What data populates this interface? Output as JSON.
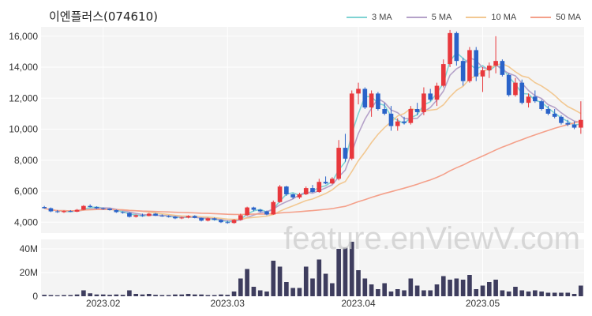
{
  "chart_data": {
    "type": "candlestick",
    "title": "이엔플러스(074610)",
    "watermark": "feature.enViewV.com",
    "legend": [
      {
        "name": "3 MA",
        "color": "#7fd3d3"
      },
      {
        "name": "5 MA",
        "color": "#b5a2c9"
      },
      {
        "name": "10 MA",
        "color": "#f2c892"
      },
      {
        "name": "50 MA",
        "color": "#f4a08a"
      }
    ],
    "colors": {
      "up": "#e8383d",
      "down": "#2a63c9",
      "volume": "#3e3d5e",
      "grid": "#e8e8e8",
      "plot_bg": "#f4f4f4"
    },
    "price_axis": {
      "ticks": [
        "4,000",
        "6,000",
        "8,000",
        "10,000",
        "12,000",
        "14,000",
        "16,000"
      ],
      "range": [
        3300,
        16600
      ]
    },
    "volume_axis": {
      "ticks": [
        "0",
        "20M",
        "40M"
      ],
      "range": [
        0,
        48
      ]
    },
    "x_labels": [
      {
        "label": "2023.02",
        "index": 9
      },
      {
        "label": "2023.03",
        "index": 28
      },
      {
        "label": "2023.04",
        "index": 48
      },
      {
        "label": "2023.05",
        "index": 67
      }
    ],
    "candles": [
      [
        4980,
        5050,
        4870,
        4900
      ],
      [
        4900,
        4950,
        4650,
        4700
      ],
      [
        4700,
        4780,
        4600,
        4650
      ],
      [
        4650,
        4760,
        4600,
        4720
      ],
      [
        4720,
        4780,
        4650,
        4680
      ],
      [
        4680,
        4850,
        4650,
        4800
      ],
      [
        4800,
        5100,
        4780,
        5050
      ],
      [
        5050,
        5150,
        4950,
        4980
      ],
      [
        4980,
        5020,
        4850,
        4900
      ],
      [
        4900,
        4950,
        4800,
        4870
      ],
      [
        4870,
        4900,
        4750,
        4780
      ],
      [
        4780,
        4820,
        4600,
        4650
      ],
      [
        4650,
        4700,
        4550,
        4600
      ],
      [
        4600,
        4650,
        4300,
        4350
      ],
      [
        4350,
        4500,
        4300,
        4450
      ],
      [
        4450,
        4550,
        4350,
        4400
      ],
      [
        4400,
        4600,
        4380,
        4550
      ],
      [
        4550,
        4600,
        4400,
        4420
      ],
      [
        4420,
        4500,
        4350,
        4380
      ],
      [
        4380,
        4450,
        4300,
        4350
      ],
      [
        4350,
        4400,
        4200,
        4250
      ],
      [
        4250,
        4350,
        4200,
        4300
      ],
      [
        4300,
        4450,
        4250,
        4400
      ],
      [
        4400,
        4450,
        4250,
        4280
      ],
      [
        4280,
        4300,
        4050,
        4100
      ],
      [
        4100,
        4300,
        4050,
        4250
      ],
      [
        4250,
        4300,
        4100,
        4150
      ],
      [
        4150,
        4200,
        3950,
        4000
      ],
      [
        4000,
        4100,
        3900,
        3950
      ],
      [
        3950,
        4200,
        3900,
        4150
      ],
      [
        4150,
        4550,
        4100,
        4450
      ],
      [
        4450,
        5000,
        4400,
        4950
      ],
      [
        4950,
        5000,
        4700,
        4800
      ],
      [
        4800,
        4850,
        4650,
        4700
      ],
      [
        4700,
        4750,
        4450,
        4500
      ],
      [
        4500,
        5400,
        4480,
        5300
      ],
      [
        5300,
        6400,
        5250,
        6300
      ],
      [
        6300,
        6350,
        5700,
        5800
      ],
      [
        5800,
        5850,
        5500,
        5600
      ],
      [
        5600,
        5900,
        5500,
        5800
      ],
      [
        5800,
        6300,
        5750,
        6200
      ],
      [
        6200,
        6400,
        5900,
        5950
      ],
      [
        5950,
        6800,
        5900,
        6600
      ],
      [
        6600,
        6950,
        6450,
        6500
      ],
      [
        6500,
        6900,
        6450,
        6800
      ],
      [
        6800,
        9300,
        6700,
        8800
      ],
      [
        8800,
        9700,
        7900,
        8100
      ],
      [
        8100,
        12500,
        8000,
        12300
      ],
      [
        12300,
        13000,
        11600,
        12600
      ],
      [
        12600,
        12700,
        11300,
        11400
      ],
      [
        11400,
        12500,
        10800,
        12300
      ],
      [
        12300,
        12400,
        11200,
        11300
      ],
      [
        11300,
        11700,
        10900,
        11000
      ],
      [
        11000,
        11500,
        9900,
        10200
      ],
      [
        10200,
        10700,
        9900,
        10500
      ],
      [
        10500,
        10800,
        10300,
        10400
      ],
      [
        10400,
        11500,
        10300,
        11300
      ],
      [
        11300,
        11700,
        10900,
        11100
      ],
      [
        11100,
        12700,
        10900,
        12300
      ],
      [
        12300,
        12600,
        11800,
        11900
      ],
      [
        11900,
        13000,
        11500,
        12800
      ],
      [
        12800,
        14500,
        12700,
        14200
      ],
      [
        14200,
        16400,
        14000,
        16200
      ],
      [
        16200,
        16300,
        14100,
        14400
      ],
      [
        14400,
        14600,
        12800,
        13100
      ],
      [
        13100,
        15300,
        13000,
        15100
      ],
      [
        15100,
        15300,
        13100,
        13400
      ],
      [
        13400,
        14000,
        12400,
        13800
      ],
      [
        13800,
        14300,
        13300,
        14100
      ],
      [
        14100,
        16000,
        13600,
        14400
      ],
      [
        14400,
        14500,
        13400,
        13500
      ],
      [
        13500,
        13600,
        12100,
        12200
      ],
      [
        12200,
        13300,
        12100,
        13000
      ],
      [
        13000,
        13200,
        11600,
        11700
      ],
      [
        11700,
        12300,
        11400,
        12100
      ],
      [
        12100,
        12500,
        11700,
        11800
      ],
      [
        11800,
        11900,
        11200,
        11300
      ],
      [
        11300,
        11500,
        10900,
        11000
      ],
      [
        11000,
        11300,
        10700,
        10800
      ],
      [
        10800,
        10900,
        10300,
        10400
      ],
      [
        10400,
        10600,
        10200,
        10300
      ],
      [
        10300,
        10500,
        10000,
        10100
      ],
      [
        10100,
        11800,
        9700,
        10600
      ]
    ],
    "volume": [
      1.2,
      1.0,
      0.8,
      1.0,
      1.0,
      1.5,
      5.0,
      2.5,
      1.5,
      1.5,
      1.2,
      1.5,
      1.2,
      5.0,
      2.0,
      1.5,
      2.0,
      1.2,
      1.0,
      1.0,
      1.5,
      1.5,
      2.0,
      1.5,
      1.5,
      1.0,
      1.0,
      1.5,
      1.2,
      4.0,
      15.0,
      23.0,
      8.0,
      5.0,
      4.0,
      30.0,
      25.0,
      12.0,
      7.0,
      7.0,
      25.0,
      15.0,
      31.0,
      19.0,
      11.0,
      40.0,
      41.0,
      46.0,
      22.0,
      15.0,
      10.0,
      6.0,
      11.0,
      4.0,
      6.0,
      5.0,
      15.0,
      9.0,
      5.0,
      5.0,
      10.0,
      17.0,
      14.0,
      15.0,
      14.0,
      18.0,
      6.0,
      9.0,
      12.0,
      14.0,
      5.0,
      4.0,
      8.0,
      5.0,
      4.0,
      5.0,
      4.0,
      3.0,
      3.0,
      3.0,
      3.0,
      2.0,
      9.0
    ]
  }
}
